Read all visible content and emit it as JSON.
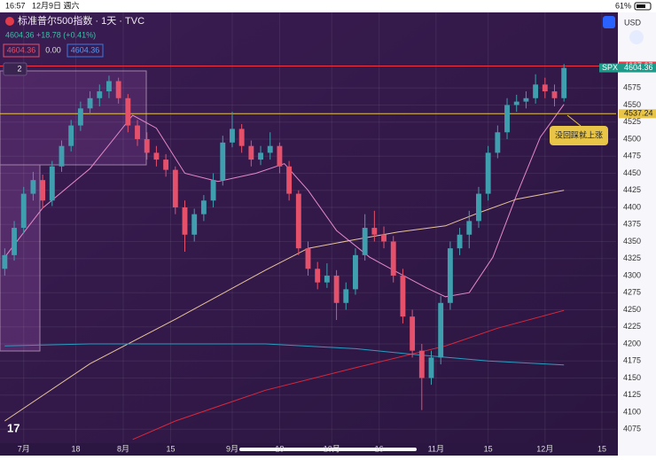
{
  "status_bar": {
    "time": "16:57",
    "date": "12月9日 週六",
    "battery": "61%"
  },
  "header": {
    "symbol": "标准普尔500指数 · 1天 · TVC",
    "quote": "4604.36 +18.78 (+0.41%)",
    "sell": "4604.36",
    "spread": "0.00",
    "buy": "4604.36",
    "currency": "USD",
    "indicator_count": "2"
  },
  "chart_data": {
    "type": "candlestick",
    "open": [
      4310,
      4330,
      4370,
      4420,
      4440,
      4410,
      4460,
      4490,
      4520,
      4545,
      4560,
      4570,
      4585,
      4560,
      4520,
      4500,
      4480,
      4470,
      4455,
      4400,
      4360,
      4390,
      4410,
      4440,
      4495,
      4515,
      4490,
      4470,
      4480,
      4490,
      4460,
      4420,
      4340,
      4310,
      4290,
      4300,
      4260,
      4280,
      4330,
      4370,
      4360,
      4350,
      4300,
      4240,
      4190,
      4150,
      4180,
      4260,
      4340,
      4360,
      4380,
      4420,
      4480,
      4510,
      4550,
      4555,
      4560,
      4580,
      4570,
      4560
    ],
    "high": [
      4340,
      4380,
      4430,
      4452,
      4448,
      4468,
      4498,
      4528,
      4555,
      4570,
      4580,
      4593,
      4590,
      4566,
      4528,
      4510,
      4490,
      4478,
      4460,
      4410,
      4398,
      4418,
      4450,
      4505,
      4540,
      4522,
      4498,
      4490,
      4510,
      4495,
      4468,
      4425,
      4350,
      4320,
      4318,
      4308,
      4290,
      4340,
      4390,
      4395,
      4372,
      4358,
      4310,
      4250,
      4200,
      4190,
      4270,
      4350,
      4370,
      4395,
      4430,
      4490,
      4520,
      4560,
      4565,
      4570,
      4595,
      4590,
      4580,
      4610
    ],
    "low": [
      4300,
      4322,
      4362,
      4410,
      4398,
      4402,
      4452,
      4482,
      4512,
      4536,
      4548,
      4560,
      4552,
      4510,
      4490,
      4470,
      4460,
      4445,
      4390,
      4335,
      4350,
      4380,
      4400,
      4432,
      4488,
      4480,
      4460,
      4462,
      4470,
      4450,
      4410,
      4330,
      4300,
      4280,
      4282,
      4235,
      4250,
      4272,
      4322,
      4350,
      4340,
      4290,
      4230,
      4180,
      4103,
      4140,
      4170,
      4250,
      4330,
      4340,
      4370,
      4410,
      4472,
      4500,
      4540,
      4545,
      4552,
      4560,
      4548,
      4555
    ],
    "close": [
      4330,
      4370,
      4420,
      4440,
      4410,
      4460,
      4490,
      4520,
      4545,
      4560,
      4570,
      4585,
      4560,
      4520,
      4500,
      4480,
      4470,
      4455,
      4400,
      4360,
      4390,
      4410,
      4440,
      4495,
      4515,
      4490,
      4470,
      4480,
      4490,
      4460,
      4420,
      4340,
      4310,
      4290,
      4300,
      4260,
      4280,
      4330,
      4370,
      4360,
      4350,
      4300,
      4240,
      4190,
      4150,
      4180,
      4260,
      4340,
      4360,
      4380,
      4420,
      4480,
      4510,
      4550,
      4555,
      4560,
      4580,
      4570,
      4560,
      4604.36
    ],
    "up_color": "#3f9fae",
    "down_color": "#e5506b",
    "lines": [
      {
        "color": "#e58ac8",
        "x": [
          0,
          4,
          9,
          13.5,
          16,
          19,
          22.5,
          26.5,
          29.5,
          32,
          35,
          38.5,
          41,
          44.5,
          46.5,
          49,
          51.5,
          54,
          56.5,
          59
        ],
        "values": [
          4327,
          4399,
          4457,
          4535,
          4516,
          4450,
          4438,
          4450,
          4464,
          4425,
          4366,
          4327,
          4308,
          4282,
          4269,
          4275,
          4327,
          4418,
          4503,
          4551
        ]
      },
      {
        "color": "#e8c49a",
        "x": [
          0,
          9,
          18,
          27.5,
          32,
          37,
          41.5,
          46.5,
          50,
          54,
          59
        ],
        "values": [
          4087,
          4171,
          4236,
          4308,
          4340,
          4353,
          4364,
          4373,
          4392,
          4412,
          4425
        ]
      },
      {
        "color": "#d8283c",
        "x": [
          13.5,
          18,
          27.5,
          37,
          46.5,
          52,
          59
        ],
        "values": [
          4060,
          4087,
          4132,
          4165,
          4197,
          4223,
          4249
        ]
      },
      {
        "color": "#2a9dc0",
        "x": [
          0,
          9,
          18,
          27.5,
          37,
          43.5,
          51,
          59
        ],
        "values": [
          4197,
          4200,
          4200,
          4200,
          4193,
          4184,
          4175,
          4169
        ]
      }
    ],
    "hlines": [
      {
        "value": 4607.07,
        "color": "#f23645"
      },
      {
        "value": 4537.24,
        "color": "#e8c547"
      }
    ],
    "last_price": {
      "label": "SPX",
      "value": 4604.36,
      "color": "#1f9a8a"
    },
    "annotation": "没回踩就上涨",
    "xlim": [
      -0.5,
      64.5
    ],
    "xticks": [
      {
        "value": 2,
        "label": "7月"
      },
      {
        "value": 7.5,
        "label": "18"
      },
      {
        "value": 12.5,
        "label": "8月"
      },
      {
        "value": 17.5,
        "label": "15"
      },
      {
        "value": 24,
        "label": "9月"
      },
      {
        "value": 29,
        "label": "18"
      },
      {
        "value": 34.5,
        "label": "10月"
      },
      {
        "value": 39.5,
        "label": "16"
      },
      {
        "value": 45.5,
        "label": "11月"
      },
      {
        "value": 51,
        "label": "15"
      },
      {
        "value": 57,
        "label": "12月"
      },
      {
        "value": 63,
        "label": "15"
      }
    ],
    "ylim": [
      4054.5,
      4655.8
    ],
    "yticks": [
      4075,
      4100,
      4125,
      4150,
      4175,
      4200,
      4225,
      4250,
      4275,
      4300,
      4325,
      4350,
      4375,
      4400,
      4425,
      4450,
      4475,
      4500,
      4525,
      4550,
      4575
    ],
    "grid": true
  }
}
